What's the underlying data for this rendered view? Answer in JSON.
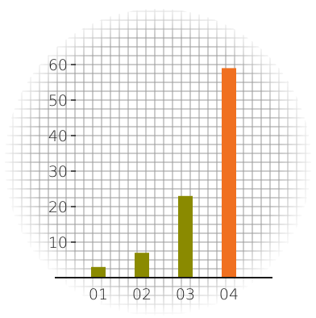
{
  "chart_data": {
    "type": "bar",
    "categories": [
      "01",
      "02",
      "03",
      "04"
    ],
    "values": [
      3,
      7,
      23,
      59
    ],
    "bar_colors": [
      "#8a8a00",
      "#8a8a00",
      "#8a8a00",
      "#f07020"
    ],
    "yticks": [
      "10",
      "20",
      "30",
      "40",
      "50",
      "60"
    ],
    "ylim": [
      0,
      70
    ],
    "grid": true,
    "title": "",
    "xlabel": "",
    "ylabel": ""
  },
  "colors": {
    "grid": "#9a9a9a",
    "axis": "#1a1a1a",
    "background": "#ffffff"
  }
}
